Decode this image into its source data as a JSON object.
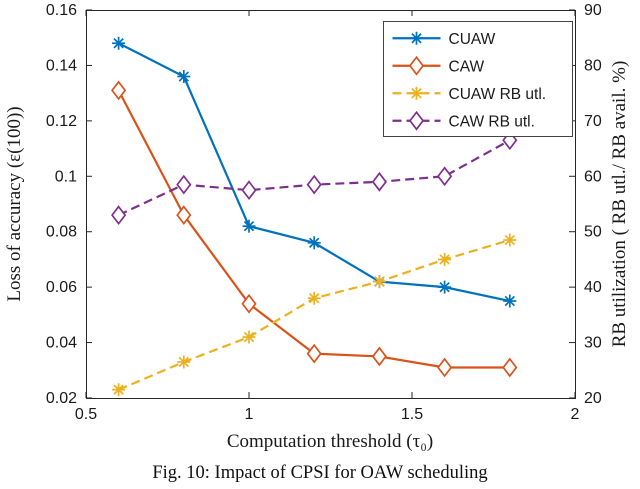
{
  "figure": {
    "caption": "Fig. 10: Impact of CPSI for OAW scheduling"
  },
  "chart_data": {
    "type": "line",
    "title": "",
    "xlabel": "Computation threshold (τ₀)",
    "ylabel_left": "Loss of accuracy (ε(100))",
    "ylabel_right": "RB utilization ( RB utl./ RB avail. %)",
    "xlim": [
      0.5,
      2
    ],
    "xticks": [
      0.5,
      1,
      1.5,
      2
    ],
    "ylim_left": [
      0.02,
      0.16
    ],
    "yticks_left": [
      0.02,
      0.04,
      0.06,
      0.08,
      0.1,
      0.12,
      0.14,
      0.16
    ],
    "ylim_right": [
      20,
      90
    ],
    "yticks_right": [
      20,
      30,
      40,
      50,
      60,
      70,
      80,
      90
    ],
    "grid": false,
    "legend_position": "top-right",
    "x": [
      0.6,
      0.8,
      1.0,
      1.2,
      1.4,
      1.6,
      1.8
    ],
    "series": [
      {
        "name": "CUAW",
        "axis": "left",
        "color": "#0072BD",
        "style": "solid",
        "marker": "asterisk",
        "values": [
          0.148,
          0.136,
          0.082,
          0.076,
          0.062,
          0.06,
          0.055
        ]
      },
      {
        "name": "CAW",
        "axis": "left",
        "color": "#D95319",
        "style": "solid",
        "marker": "diamond",
        "values": [
          0.131,
          0.086,
          0.054,
          0.036,
          0.035,
          0.031,
          0.031
        ]
      },
      {
        "name": "CUAW RB utl.",
        "axis": "right",
        "color": "#EDB120",
        "style": "dashed",
        "marker": "asterisk",
        "values": [
          21.5,
          26.5,
          31,
          38,
          41,
          45,
          48.5
        ]
      },
      {
        "name": "CAW RB utl.",
        "axis": "right",
        "color": "#7E2F8E",
        "style": "dashed",
        "marker": "diamond",
        "values": [
          53,
          58.5,
          57.5,
          58.5,
          59,
          60,
          66.5
        ]
      }
    ]
  }
}
